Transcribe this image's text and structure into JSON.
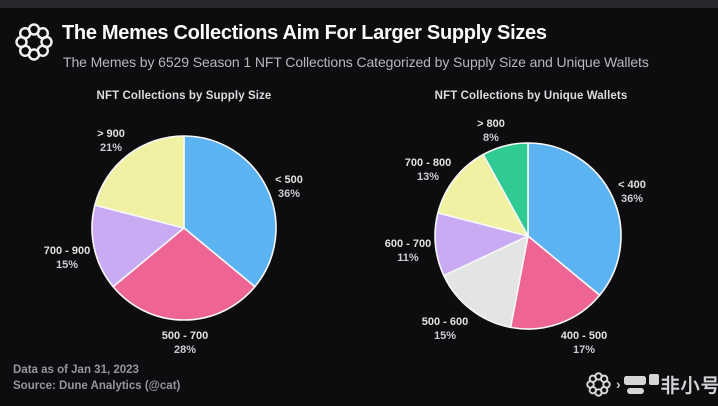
{
  "header": {
    "title": "The Memes Collections Aim For Larger Supply Sizes",
    "subtitle": "The Memes by 6529 Season 1 NFT Collections Categorized by Supply Size and Unique Wallets"
  },
  "footer": {
    "data_as_of": "Data as of Jan 31, 2023",
    "source": "Source: Dune Analytics (@cat)",
    "chevron": "›",
    "watermark": "非小号"
  },
  "icons": {
    "brand_logo": "6529-ring-logo",
    "watermark_logo": "feixiaohao-logo"
  },
  "colors": {
    "background": "#0d0d10",
    "top_strip": "#28282c",
    "slice_stroke": "#f7f7f7",
    "blue": "#5cb3f1",
    "pink": "#ee6494",
    "purple": "#c9abf4",
    "yellow": "#f0f1a2",
    "gray": "#e2e5e4",
    "green": "#2fcb92"
  },
  "chart_data": [
    {
      "type": "pie",
      "title": "NFT Collections by Supply Size",
      "start_angle_deg": 0,
      "direction": "clockwise",
      "slices": [
        {
          "label": "< 500",
          "value": 36,
          "pct": "36%",
          "color": "#5cb3f1"
        },
        {
          "label": "500 - 700",
          "value": 28,
          "pct": "28%",
          "color": "#ee6494"
        },
        {
          "label": "700 - 900",
          "value": 15,
          "pct": "15%",
          "color": "#c9abf4"
        },
        {
          "label": "> 900",
          "value": 21,
          "pct": "21%",
          "color": "#f0f1a2"
        }
      ]
    },
    {
      "type": "pie",
      "title": "NFT Collections by Unique Wallets",
      "start_angle_deg": 0,
      "direction": "clockwise",
      "slices": [
        {
          "label": "< 400",
          "value": 36,
          "pct": "36%",
          "color": "#5cb3f1"
        },
        {
          "label": "400 - 500",
          "value": 17,
          "pct": "17%",
          "color": "#ee6494"
        },
        {
          "label": "500 - 600",
          "value": 15,
          "pct": "15%",
          "color": "#e2e5e4"
        },
        {
          "label": "600 - 700",
          "value": 11,
          "pct": "11%",
          "color": "#c9abf4"
        },
        {
          "label": "700 - 800",
          "value": 13,
          "pct": "13%",
          "color": "#f0f1a2"
        },
        {
          "label": "> 800",
          "value": 8,
          "pct": "8%",
          "color": "#2fcb92"
        }
      ]
    }
  ]
}
